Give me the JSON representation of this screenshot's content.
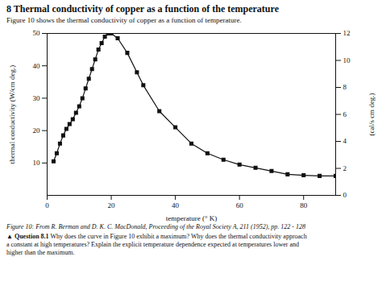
{
  "chart_data": {
    "type": "line",
    "title": "8   Thermal conductivity of copper as a function of the temperature",
    "subtitle": "Figure 10 shows the thermal conductivity of copper as a function of temperature.",
    "xlabel": "temperature (° K)",
    "ylabel": "thermal conductivity (W/cm deg.)",
    "y2label": "(cal/s cm deg.)",
    "caption": "Figure 10: From R. Berman and D. K. C. MacDonald, Proceeding of the Royal Society A, 211 (1952), pp. 122 - 128",
    "question_heading": "▲ Question 8.1",
    "question_text": " Why does the curve in Figure 10 exhibit a maximum? Why does the thermal conductivity approach\na constant at high temperatures? Explain the explicit temperature dependence expected at temperatures lower and\nhigher than the maximum.",
    "x": [
      2,
      3,
      4,
      5,
      6,
      7,
      8,
      9,
      10,
      11,
      12,
      13,
      14,
      15,
      16,
      17,
      18,
      19,
      20,
      22,
      25,
      28,
      30,
      35,
      40,
      45,
      50,
      55,
      60,
      65,
      70,
      75,
      80,
      85,
      90
    ],
    "values": [
      10.5,
      13,
      16,
      18.5,
      20.5,
      22,
      23.5,
      25.5,
      27.5,
      30,
      33,
      36,
      39,
      42,
      45,
      47,
      49,
      50,
      50,
      48.5,
      44,
      38,
      34,
      26,
      21,
      16,
      13,
      11,
      9.5,
      8.5,
      7.5,
      6.5,
      6.2,
      6.0,
      6.0
    ],
    "color": "#111111",
    "marker": "square",
    "xlim": [
      0,
      90
    ],
    "xticks": [
      0,
      20,
      40,
      60,
      80
    ],
    "ylim": [
      0,
      50
    ],
    "yticks": [
      10,
      20,
      30,
      40,
      50
    ],
    "y2lim": [
      0,
      12
    ],
    "y2ticks": [
      0,
      2,
      4,
      6,
      8,
      10,
      12
    ],
    "grid": false
  }
}
